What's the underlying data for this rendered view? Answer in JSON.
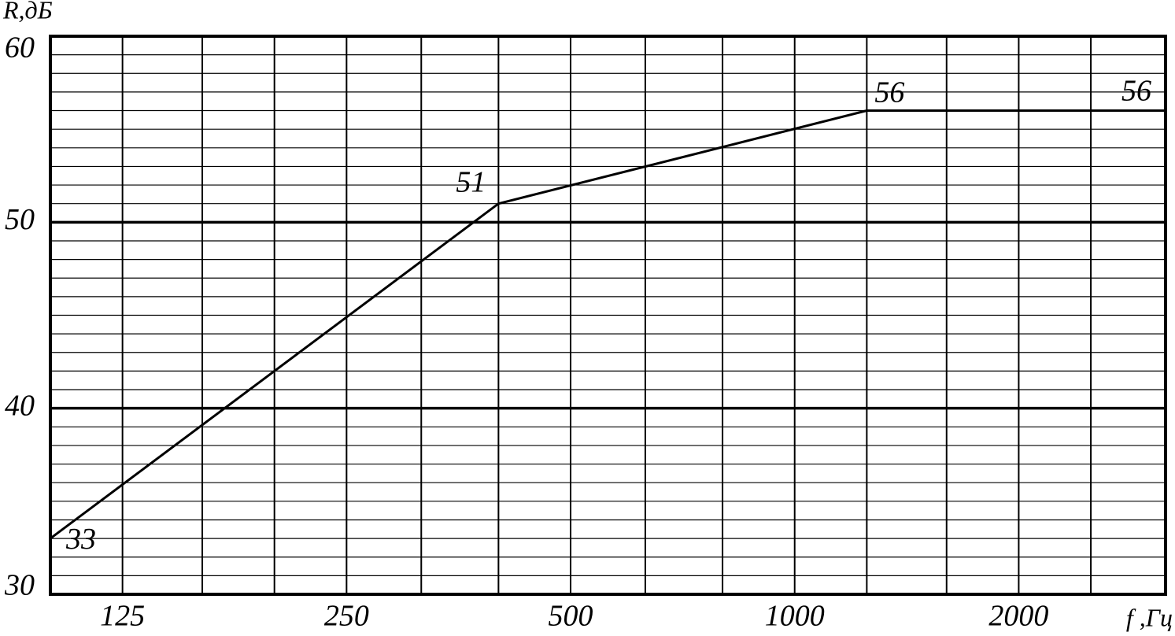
{
  "chart_data": {
    "type": "line",
    "y_label": "R,дБ",
    "x_label": "f ,Гц",
    "x_log": true,
    "x": [
      100,
      400,
      1250,
      3150
    ],
    "series": [
      {
        "color": "#000000",
        "values": [
          33,
          51,
          56,
          56
        ]
      }
    ],
    "xlim": [
      100,
      3150
    ],
    "xticks": [
      125,
      250,
      500,
      1000,
      2000
    ],
    "xminor": [
      160,
      200,
      315,
      400,
      630,
      800,
      1250,
      1600,
      2500
    ],
    "ylim": [
      30,
      60
    ],
    "yticks": [
      30,
      40,
      50,
      60
    ],
    "yminor": [
      31,
      32,
      33,
      34,
      35,
      36,
      37,
      38,
      39,
      41,
      42,
      43,
      44,
      45,
      46,
      47,
      48,
      49,
      51,
      52,
      53,
      54,
      55,
      56,
      57,
      58,
      59
    ],
    "grid": true
  }
}
